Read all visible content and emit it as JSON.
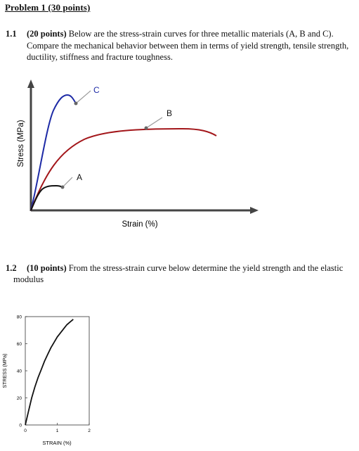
{
  "header": {
    "title": "Problem 1 (30 points)"
  },
  "question_1_1": {
    "number": "1.1",
    "points": "(20 points)",
    "line1": "Below are the stress-strain curves for three metallic materials (A, B and C).",
    "line2": "Compare the mechanical behavior between them in terms of yield strength, tensile strength,",
    "line3": "ductility, stiffness and fracture toughness."
  },
  "question_1_2": {
    "number": "1.2",
    "points": "(10 points)",
    "line1": "From the stress-strain curve below determine the yield strength and the elastic",
    "line2": "modulus"
  },
  "chart_data": [
    {
      "type": "line",
      "title": "",
      "xlabel": "Strain (%)",
      "ylabel": "Stress (MPa)",
      "series": [
        {
          "name": "A",
          "color": "#111111"
        },
        {
          "name": "B",
          "color": "#a3161a"
        },
        {
          "name": "C",
          "color": "#1d2aa6"
        }
      ],
      "curve_labels": [
        "A",
        "B",
        "C"
      ]
    },
    {
      "type": "line",
      "title": "",
      "xlabel": "STRAIN (%)",
      "ylabel": "STRESS (MPa)",
      "xlim": [
        0,
        2
      ],
      "ylim": [
        0,
        80
      ],
      "x_ticks": [
        "0",
        "1",
        "2"
      ],
      "y_ticks": [
        "0",
        "20",
        "40",
        "60",
        "80"
      ],
      "series": [
        {
          "color": "#111111",
          "x": [
            0,
            0.1,
            0.2,
            0.3,
            0.4,
            0.5,
            0.6,
            0.7,
            0.8,
            0.9,
            1.0,
            1.1,
            1.2,
            1.3,
            1.4,
            1.5
          ],
          "y": [
            0,
            10,
            20,
            28,
            35,
            41,
            47,
            52,
            57,
            61,
            65,
            68,
            71,
            74,
            76,
            78
          ]
        }
      ]
    }
  ]
}
